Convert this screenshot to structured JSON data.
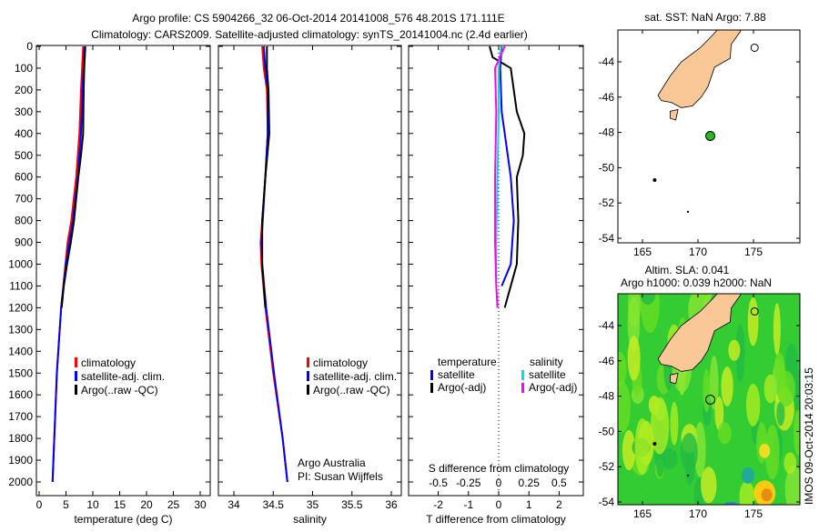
{
  "title_line1": "Argo profile: CS 5904266_32 06-Oct-2014 20141008_576 48.201S 171.111E",
  "title_line2": "Climatology: CARS2009. Satellite-adjusted climatology: synTS_20141004.nc (2.4d earlier)",
  "colors": {
    "climatology": "#ff0000",
    "satellite": "#0000ff",
    "argo": "#000000",
    "sal_satellite": "#00e0e0",
    "sal_argo": "#ff00ff",
    "land": "#f9c896",
    "sla_base": "#33cc33"
  },
  "chart_data": [
    {
      "type": "line",
      "id": "temperature",
      "xlabel": "temperature (deg C)",
      "xlim": [
        0,
        31
      ],
      "ylim": [
        2050,
        0
      ],
      "xticks": [
        "0",
        "5",
        "10",
        "15",
        "20",
        "25",
        "30"
      ],
      "yticks": [
        "0",
        "100",
        "200",
        "300",
        "400",
        "500",
        "600",
        "700",
        "800",
        "900",
        "1000",
        "1100",
        "1200",
        "1300",
        "1400",
        "1500",
        "1600",
        "1700",
        "1800",
        "1900",
        "2000"
      ],
      "legend": [
        "climatology",
        "satellite-adj. clim.",
        "Argo(..raw -QC)"
      ],
      "series": [
        {
          "name": "climatology",
          "depth": [
            0,
            100,
            200,
            400,
            600,
            800,
            900,
            1000,
            1200,
            1500,
            2000
          ],
          "values": [
            8.2,
            8.0,
            7.8,
            7.5,
            6.9,
            6.0,
            5.3,
            4.9,
            4.1,
            3.3,
            2.5
          ]
        },
        {
          "name": "satellite-adj. clim.",
          "depth": [
            0,
            100,
            200,
            400,
            600,
            800,
            900,
            1000,
            1200,
            1500,
            2000
          ],
          "values": [
            8.5,
            8.3,
            8.1,
            7.8,
            7.2,
            6.3,
            5.6,
            5.0,
            4.1,
            3.3,
            2.5
          ]
        },
        {
          "name": "Argo(..raw -QC)",
          "depth": [
            0,
            100,
            200,
            400,
            500,
            600,
            800,
            900,
            1000,
            1100,
            1200
          ],
          "values": [
            8.6,
            8.4,
            8.3,
            8.2,
            7.8,
            7.3,
            6.5,
            5.9,
            5.2,
            4.6,
            4.2
          ]
        }
      ]
    },
    {
      "type": "line",
      "id": "salinity",
      "xlabel": "salinity",
      "xlim": [
        33.8,
        36.1
      ],
      "ylim": [
        2050,
        0
      ],
      "xticks": [
        "34",
        "34.5",
        "35",
        "35.5",
        "36"
      ],
      "legend": [
        "climatology",
        "satellite-adj. clim.",
        "Argo(..raw -QC)"
      ],
      "annotation": [
        "Argo Australia",
        "PI: Susan Wijffels"
      ],
      "series": [
        {
          "name": "climatology",
          "depth": [
            0,
            100,
            200,
            400,
            600,
            900,
            1000,
            1200,
            1500,
            1800,
            2000
          ],
          "values": [
            34.36,
            34.38,
            34.42,
            34.43,
            34.4,
            34.34,
            34.35,
            34.4,
            34.5,
            34.62,
            34.68
          ]
        },
        {
          "name": "satellite-adj. clim.",
          "depth": [
            0,
            100,
            200,
            400,
            600,
            900,
            1000,
            1200,
            1500,
            1800,
            2000
          ],
          "values": [
            34.38,
            34.4,
            34.43,
            34.43,
            34.4,
            34.35,
            34.36,
            34.41,
            34.51,
            34.62,
            34.68
          ]
        },
        {
          "name": "Argo(..raw -QC)",
          "depth": [
            0,
            100,
            200,
            400,
            600,
            800,
            1000,
            1100,
            1200
          ],
          "values": [
            34.42,
            34.42,
            34.44,
            34.45,
            34.4,
            34.36,
            34.36,
            34.38,
            34.4
          ]
        }
      ]
    },
    {
      "type": "line",
      "id": "difference",
      "xlabel": "T difference from climatology",
      "x2label": "S difference from climatology",
      "xlim": [
        -2.8,
        2.8
      ],
      "ylim": [
        2050,
        0
      ],
      "xticks": [
        "-2",
        "-1",
        "0",
        "1",
        "2"
      ],
      "x2ticks": [
        "-0.5",
        "-0.25",
        "0",
        "0.25",
        "0.5"
      ],
      "legend": {
        "temperature_header": "temperature",
        "salinity_header": "salinity",
        "items": [
          "satellite",
          "Argo(-adj)",
          "satellite",
          "Argo(-adj)"
        ]
      },
      "series": [
        {
          "name": "T satellite",
          "depth": [
            0,
            100,
            300,
            500,
            600,
            800,
            1000,
            1100
          ],
          "values": [
            0.1,
            0.05,
            0.1,
            0.3,
            0.4,
            0.5,
            0.4,
            0.1
          ]
        },
        {
          "name": "T Argo(-adj)",
          "depth": [
            0,
            50,
            100,
            300,
            400,
            500,
            600,
            800,
            1000,
            1100,
            1200
          ],
          "values": [
            -0.3,
            -0.2,
            0.4,
            0.6,
            0.85,
            0.8,
            0.6,
            0.65,
            0.6,
            0.4,
            0.2
          ]
        },
        {
          "name": "S satellite",
          "depth": [
            0,
            100,
            300,
            600,
            900,
            1100
          ],
          "values": [
            0.02,
            0.0,
            0.0,
            -0.01,
            -0.02,
            -0.02
          ]
        },
        {
          "name": "S Argo(-adj)",
          "depth": [
            0,
            100,
            300,
            600,
            900,
            1100,
            1200
          ],
          "values": [
            0.05,
            -0.03,
            -0.02,
            -0.03,
            -0.03,
            -0.02,
            -0.01
          ]
        }
      ]
    }
  ],
  "map_sst": {
    "title": "sat. SST: NaN Argo: 7.88",
    "lon_ticks": [
      "165",
      "170",
      "175"
    ],
    "lat_ticks": [
      "-44",
      "-46",
      "-48",
      "-50",
      "-52",
      "-54"
    ],
    "argo_lon": 171.111,
    "argo_lat": -48.201
  },
  "map_sla": {
    "title_line1": "Altim. SLA: 0.041",
    "title_line2": "Argo h1000: 0.039 h2000: NaN",
    "lon_ticks": [
      "165",
      "170",
      "175"
    ],
    "lat_ticks": [
      "-44",
      "-46",
      "-48",
      "-50",
      "-52",
      "-54"
    ],
    "stamp": "IMOS 09-Oct-2014 20:03:15"
  }
}
